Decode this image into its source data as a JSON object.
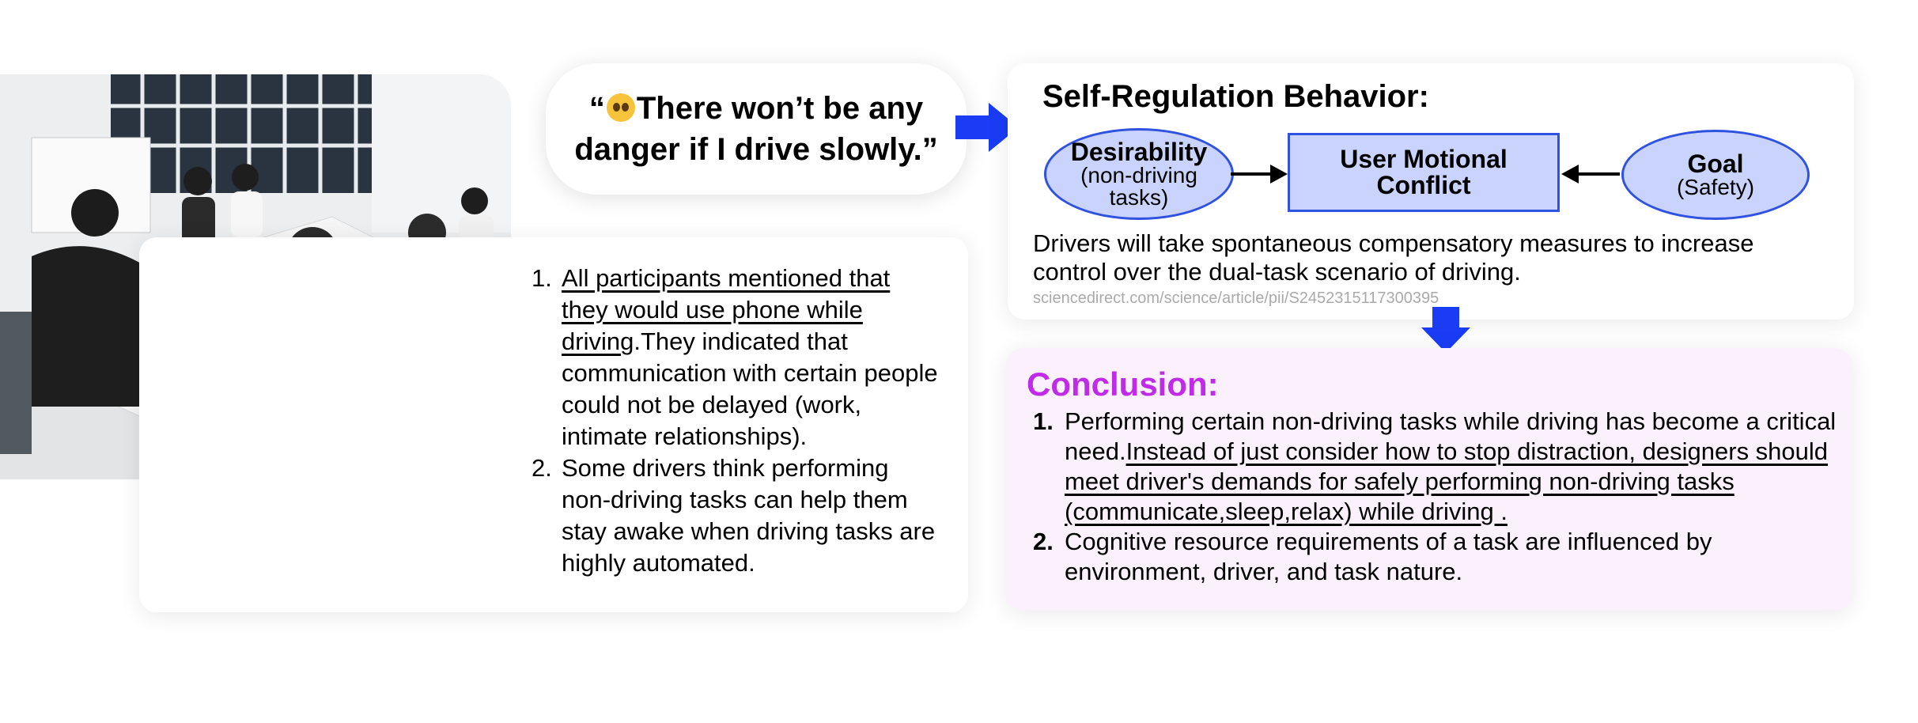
{
  "quote": {
    "open_mark": "“",
    "emoji_icon": "pleading-face-emoji",
    "line1": "There won’t be any",
    "line2": "danger if I drive slowly.”"
  },
  "findings": [
    {
      "number": "1.",
      "underlined": "All participants mentioned that they would use phone while driving",
      "rest": ".They indicated that communication with certain people could not be delayed (work, intimate relationships)."
    },
    {
      "number": "2.",
      "text": "Some drivers think performing non-driving tasks can help them stay awake when driving tasks are highly automated."
    }
  ],
  "self_regulation": {
    "title": "Self-Regulation Behavior:",
    "desirability": {
      "label": "Desirability",
      "sub": "(non-driving tasks)"
    },
    "conflict": {
      "line1": "User Motional",
      "line2": "Conflict"
    },
    "goal": {
      "label": "Goal",
      "sub": "(Safety)"
    },
    "description": "Drivers will take spontaneous compensatory measures to increase control over the dual-task scenario of driving.",
    "source_url": "sciencedirect.com/science/article/pii/S2452315117300395"
  },
  "conclusion": {
    "title": "Conclusion:",
    "items": [
      {
        "number": "1.",
        "plain": "Performing certain non-driving tasks while driving has become a critical need.",
        "underlined": "Instead of just consider how to stop distraction, designers should meet driver's demands for safely performing non-driving tasks (communicate,sleep,relax) while driving ."
      },
      {
        "number": "2.",
        "text": "Cognitive resource requirements of a task are influenced by environment, driver, and task nature."
      }
    ]
  },
  "colors": {
    "accent_blue": "#1a3cf5",
    "node_fill": "#c9d3fb",
    "node_border": "#2f52e0",
    "conclusion_title": "#c02be8",
    "conclusion_bg": "#fbf1fd"
  }
}
